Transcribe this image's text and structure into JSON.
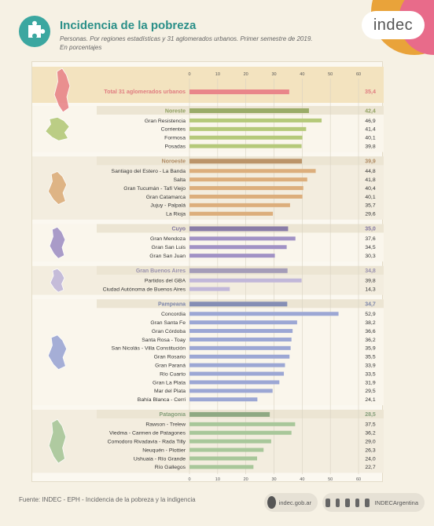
{
  "header": {
    "title": "Incidencia de la pobreza",
    "subtitle_line1": "Personas. Por regiones estadísticas y 31 aglomerados urbanos. Primer semestre de 2019.",
    "subtitle_line2": "En porcentajes",
    "logo_text": "indec"
  },
  "footer": {
    "source": "Fuente: INDEC - EPH - Incidencia de la pobreza y la indigencia",
    "website": "indec.gob.ar",
    "social_handle": "INDECArgentina",
    "social_icons": [
      "twitter-icon",
      "facebook-icon",
      "instagram-icon",
      "linkedin-icon",
      "youtube-icon"
    ]
  },
  "chart_data": {
    "type": "bar",
    "orientation": "horizontal",
    "xlim": [
      0,
      60
    ],
    "xticks": [
      0,
      10,
      20,
      30,
      40,
      50,
      60
    ],
    "grid": true,
    "colors": {
      "total": "#e9868a",
      "Noreste": "#b5c97a",
      "Noroeste": "#dcae7c",
      "Cuyo": "#a192c5",
      "Gran Buenos Aires": "#c1b7d9",
      "Pampeana": "#9ca7d4",
      "Patagonia": "#a8c79a"
    },
    "total": {
      "label": "Total 31 aglomerados urbanos",
      "value": 35.4,
      "value_text": "35,4"
    },
    "regions": [
      {
        "name": "Noreste",
        "value": 42.4,
        "value_text": "42,4",
        "items": [
          {
            "label": "Gran Resistencia",
            "value": 46.9,
            "value_text": "46,9"
          },
          {
            "label": "Corrientes",
            "value": 41.4,
            "value_text": "41,4"
          },
          {
            "label": "Formosa",
            "value": 40.1,
            "value_text": "40,1"
          },
          {
            "label": "Posadas",
            "value": 39.8,
            "value_text": "39,8"
          }
        ]
      },
      {
        "name": "Noroeste",
        "value": 39.9,
        "value_text": "39,9",
        "items": [
          {
            "label": "Santiago del Estero - La Banda",
            "value": 44.8,
            "value_text": "44,8"
          },
          {
            "label": "Salta",
            "value": 41.8,
            "value_text": "41,8"
          },
          {
            "label": "Gran Tucumán - Tafí Viejo",
            "value": 40.4,
            "value_text": "40,4"
          },
          {
            "label": "Gran Catamarca",
            "value": 40.1,
            "value_text": "40,1"
          },
          {
            "label": "Jujuy - Palpalá",
            "value": 35.7,
            "value_text": "35,7"
          },
          {
            "label": "La Rioja",
            "value": 29.6,
            "value_text": "29,6"
          }
        ]
      },
      {
        "name": "Cuyo",
        "value": 35.0,
        "value_text": "35,0",
        "items": [
          {
            "label": "Gran Mendoza",
            "value": 37.6,
            "value_text": "37,6"
          },
          {
            "label": "Gran San Luis",
            "value": 34.5,
            "value_text": "34,5"
          },
          {
            "label": "Gran San Juan",
            "value": 30.3,
            "value_text": "30,3"
          }
        ]
      },
      {
        "name": "Gran Buenos Aires",
        "value": 34.8,
        "value_text": "34,8",
        "items": [
          {
            "label": "Partidos del GBA",
            "value": 39.8,
            "value_text": "39,8"
          },
          {
            "label": "Ciudad Autónoma de Buenos Aires",
            "value": 14.3,
            "value_text": "14,3"
          }
        ]
      },
      {
        "name": "Pampeana",
        "value": 34.7,
        "value_text": "34,7",
        "items": [
          {
            "label": "Concordia",
            "value": 52.9,
            "value_text": "52,9"
          },
          {
            "label": "Gran Santa Fe",
            "value": 38.2,
            "value_text": "38,2"
          },
          {
            "label": "Gran Córdoba",
            "value": 36.6,
            "value_text": "36,6"
          },
          {
            "label": "Santa Rosa - Toay",
            "value": 36.2,
            "value_text": "36,2"
          },
          {
            "label": "San Nicolás - Villa Constitución",
            "value": 35.9,
            "value_text": "35,9"
          },
          {
            "label": "Gran Rosario",
            "value": 35.5,
            "value_text": "35,5"
          },
          {
            "label": "Gran Paraná",
            "value": 33.9,
            "value_text": "33,9"
          },
          {
            "label": "Río Cuarto",
            "value": 33.5,
            "value_text": "33,5"
          },
          {
            "label": "Gran La Plata",
            "value": 31.9,
            "value_text": "31,9"
          },
          {
            "label": "Mar del Plata",
            "value": 29.5,
            "value_text": "29,5"
          },
          {
            "label": "Bahía Blanca - Cerri",
            "value": 24.1,
            "value_text": "24,1"
          }
        ]
      },
      {
        "name": "Patagonia",
        "value": 28.5,
        "value_text": "28,5",
        "items": [
          {
            "label": "Rawson - Trelew",
            "value": 37.5,
            "value_text": "37,5"
          },
          {
            "label": "Viedma - Carmen de Patagones",
            "value": 36.2,
            "value_text": "36,2"
          },
          {
            "label": "Comodoro Rivadavia - Rada Tilly",
            "value": 29.0,
            "value_text": "29,0"
          },
          {
            "label": "Neuquén - Plottier",
            "value": 26.3,
            "value_text": "26,3"
          },
          {
            "label": "Ushuaia - Río Grande",
            "value": 24.0,
            "value_text": "24,0"
          },
          {
            "label": "Río Gallegos",
            "value": 22.7,
            "value_text": "22,7"
          }
        ]
      }
    ]
  }
}
